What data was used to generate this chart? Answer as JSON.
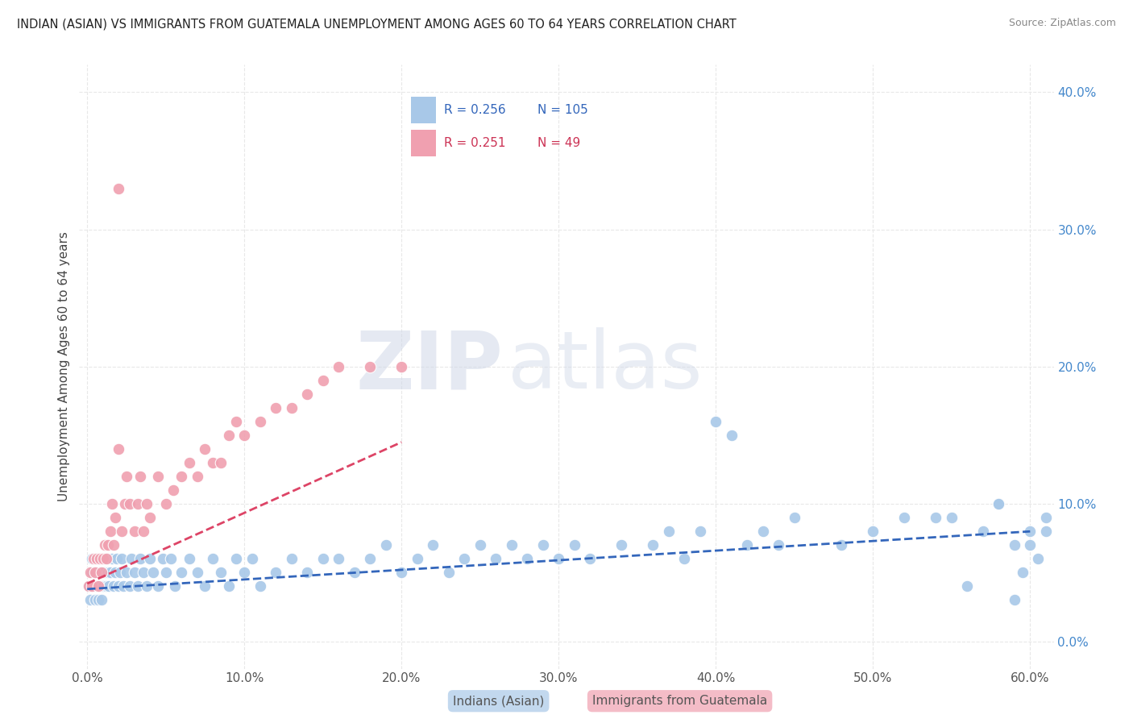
{
  "title": "INDIAN (ASIAN) VS IMMIGRANTS FROM GUATEMALA UNEMPLOYMENT AMONG AGES 60 TO 64 YEARS CORRELATION CHART",
  "source": "Source: ZipAtlas.com",
  "ylabel": "Unemployment Among Ages 60 to 64 years",
  "xlim": [
    -0.005,
    0.615
  ],
  "ylim": [
    -0.02,
    0.42
  ],
  "xticks": [
    0.0,
    0.1,
    0.2,
    0.3,
    0.4,
    0.5,
    0.6
  ],
  "yticks": [
    0.0,
    0.1,
    0.2,
    0.3,
    0.4
  ],
  "color_indian": "#a8c8e8",
  "color_guatemala": "#f0a0b0",
  "trendline_color_indian": "#3366bb",
  "trendline_color_guatemala": "#dd4466",
  "R_indian": 0.256,
  "N_indian": 105,
  "R_guatemala": 0.251,
  "N_guatemala": 49,
  "watermark_zip": "ZIP",
  "watermark_atlas": "atlas",
  "background_color": "#ffffff",
  "grid_color": "#e8e8e8",
  "indian_x": [
    0.001,
    0.002,
    0.003,
    0.003,
    0.004,
    0.005,
    0.005,
    0.006,
    0.006,
    0.007,
    0.007,
    0.008,
    0.008,
    0.009,
    0.01,
    0.01,
    0.011,
    0.012,
    0.012,
    0.013,
    0.014,
    0.015,
    0.016,
    0.017,
    0.018,
    0.019,
    0.02,
    0.021,
    0.022,
    0.023,
    0.025,
    0.027,
    0.028,
    0.03,
    0.032,
    0.034,
    0.036,
    0.038,
    0.04,
    0.042,
    0.045,
    0.048,
    0.05,
    0.053,
    0.056,
    0.06,
    0.065,
    0.07,
    0.075,
    0.08,
    0.085,
    0.09,
    0.095,
    0.1,
    0.105,
    0.11,
    0.12,
    0.13,
    0.14,
    0.15,
    0.16,
    0.17,
    0.18,
    0.19,
    0.2,
    0.21,
    0.22,
    0.23,
    0.24,
    0.25,
    0.26,
    0.27,
    0.28,
    0.29,
    0.3,
    0.31,
    0.32,
    0.34,
    0.36,
    0.37,
    0.38,
    0.39,
    0.4,
    0.41,
    0.42,
    0.43,
    0.44,
    0.45,
    0.48,
    0.5,
    0.52,
    0.54,
    0.55,
    0.57,
    0.58,
    0.59,
    0.6,
    0.61,
    0.58,
    0.6,
    0.61,
    0.605,
    0.595,
    0.56,
    0.59
  ],
  "indian_y": [
    0.04,
    0.03,
    0.05,
    0.06,
    0.04,
    0.03,
    0.06,
    0.04,
    0.05,
    0.03,
    0.06,
    0.04,
    0.05,
    0.03,
    0.04,
    0.06,
    0.05,
    0.04,
    0.06,
    0.05,
    0.04,
    0.05,
    0.06,
    0.04,
    0.05,
    0.06,
    0.04,
    0.05,
    0.06,
    0.04,
    0.05,
    0.04,
    0.06,
    0.05,
    0.04,
    0.06,
    0.05,
    0.04,
    0.06,
    0.05,
    0.04,
    0.06,
    0.05,
    0.06,
    0.04,
    0.05,
    0.06,
    0.05,
    0.04,
    0.06,
    0.05,
    0.04,
    0.06,
    0.05,
    0.06,
    0.04,
    0.05,
    0.06,
    0.05,
    0.06,
    0.06,
    0.05,
    0.06,
    0.07,
    0.05,
    0.06,
    0.07,
    0.05,
    0.06,
    0.07,
    0.06,
    0.07,
    0.06,
    0.07,
    0.06,
    0.07,
    0.06,
    0.07,
    0.07,
    0.08,
    0.06,
    0.08,
    0.16,
    0.15,
    0.07,
    0.08,
    0.07,
    0.09,
    0.07,
    0.08,
    0.09,
    0.09,
    0.09,
    0.08,
    0.1,
    0.07,
    0.08,
    0.09,
    0.1,
    0.07,
    0.08,
    0.06,
    0.05,
    0.04,
    0.03
  ],
  "guatemala_x": [
    0.001,
    0.002,
    0.003,
    0.004,
    0.005,
    0.006,
    0.007,
    0.008,
    0.009,
    0.01,
    0.011,
    0.012,
    0.013,
    0.015,
    0.016,
    0.017,
    0.018,
    0.02,
    0.022,
    0.024,
    0.02,
    0.025,
    0.027,
    0.03,
    0.032,
    0.034,
    0.036,
    0.038,
    0.04,
    0.045,
    0.05,
    0.055,
    0.06,
    0.065,
    0.07,
    0.075,
    0.08,
    0.085,
    0.09,
    0.095,
    0.1,
    0.11,
    0.12,
    0.13,
    0.14,
    0.15,
    0.16,
    0.18,
    0.2
  ],
  "guatemala_y": [
    0.04,
    0.05,
    0.04,
    0.06,
    0.05,
    0.06,
    0.04,
    0.06,
    0.05,
    0.06,
    0.07,
    0.06,
    0.07,
    0.08,
    0.1,
    0.07,
    0.09,
    0.33,
    0.08,
    0.1,
    0.14,
    0.12,
    0.1,
    0.08,
    0.1,
    0.12,
    0.08,
    0.1,
    0.09,
    0.12,
    0.1,
    0.11,
    0.12,
    0.13,
    0.12,
    0.14,
    0.13,
    0.13,
    0.15,
    0.16,
    0.15,
    0.16,
    0.17,
    0.17,
    0.18,
    0.19,
    0.2,
    0.2,
    0.2
  ],
  "indian_trend_x": [
    0.0,
    0.6
  ],
  "indian_trend_y": [
    0.038,
    0.08
  ],
  "guatemala_trend_x": [
    0.0,
    0.2
  ],
  "guatemala_trend_y": [
    0.042,
    0.145
  ]
}
